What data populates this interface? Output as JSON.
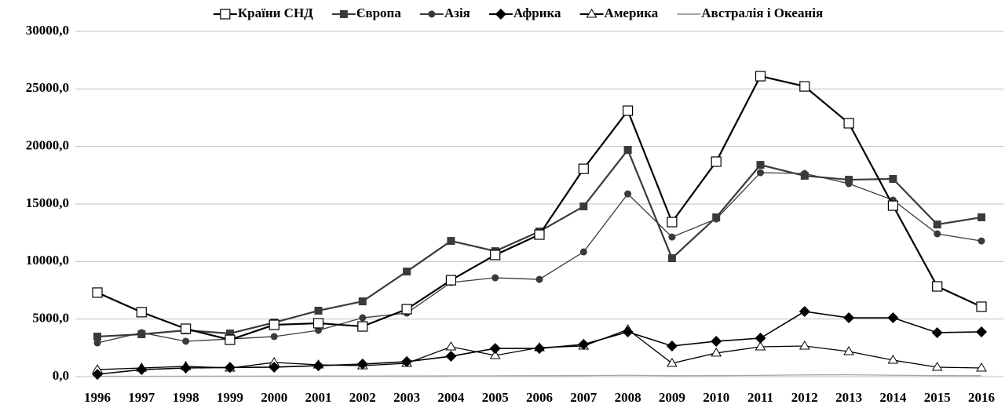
{
  "chart_data": {
    "type": "line",
    "categories": [
      "1996",
      "1997",
      "1998",
      "1999",
      "2000",
      "2001",
      "2002",
      "2003",
      "2004",
      "2005",
      "2006",
      "2007",
      "2008",
      "2009",
      "2010",
      "2011",
      "2012",
      "2013",
      "2014",
      "2015",
      "2016"
    ],
    "series": [
      {
        "name": "Країни СНД",
        "color": "#000000",
        "marker": "square-open",
        "values": [
          7300,
          5600,
          4160,
          3200,
          4500,
          4640,
          4360,
          5860,
          8380,
          10570,
          12340,
          18060,
          23110,
          13430,
          18680,
          26110,
          25220,
          22020,
          14860,
          7840,
          6070
        ]
      },
      {
        "name": "Європа",
        "color": "#3a3a3a",
        "marker": "square",
        "values": [
          3480,
          3680,
          4020,
          3750,
          4700,
          5730,
          6540,
          9130,
          11790,
          10900,
          12610,
          14790,
          19700,
          10290,
          13840,
          18400,
          17450,
          17110,
          17180,
          13220,
          13840
        ]
      },
      {
        "name": "Азія",
        "color": "#3a3a3a",
        "marker": "circle",
        "values": [
          2930,
          3820,
          3070,
          3270,
          3480,
          4020,
          5110,
          5520,
          8180,
          8590,
          8450,
          10840,
          15880,
          12130,
          13700,
          17720,
          17650,
          16770,
          15340,
          12410,
          11790
        ]
      },
      {
        "name": "Африка",
        "color": "#000000",
        "marker": "diamond",
        "values": [
          200,
          610,
          750,
          800,
          820,
          950,
          1090,
          1300,
          1770,
          2450,
          2450,
          2800,
          3890,
          2660,
          3070,
          3340,
          5660,
          5110,
          5110,
          3820,
          3890
        ]
      },
      {
        "name": "Америка",
        "color": "#000000",
        "marker": "triangle-open",
        "values": [
          610,
          750,
          890,
          750,
          1230,
          1020,
          950,
          1160,
          2590,
          1840,
          2520,
          2660,
          4090,
          1160,
          2050,
          2590,
          2660,
          2180,
          1430,
          820,
          750
        ]
      },
      {
        "name": "Австралія і Океанія",
        "color": "#a6a6a6",
        "marker": "none",
        "values": [
          30,
          30,
          40,
          40,
          50,
          50,
          50,
          60,
          70,
          70,
          80,
          90,
          120,
          80,
          90,
          110,
          150,
          160,
          120,
          90,
          80
        ]
      }
    ],
    "ylim": [
      0,
      30000
    ],
    "yticks": [
      {
        "value": 0,
        "label": "0,0"
      },
      {
        "value": 5000,
        "label": "5000,0"
      },
      {
        "value": 10000,
        "label": "10000,0"
      },
      {
        "value": 15000,
        "label": "15000,0"
      },
      {
        "value": 20000,
        "label": "20000,0"
      },
      {
        "value": 25000,
        "label": "25000,0"
      },
      {
        "value": 30000,
        "label": "30000,0"
      }
    ],
    "grid": true,
    "legend": "top"
  }
}
